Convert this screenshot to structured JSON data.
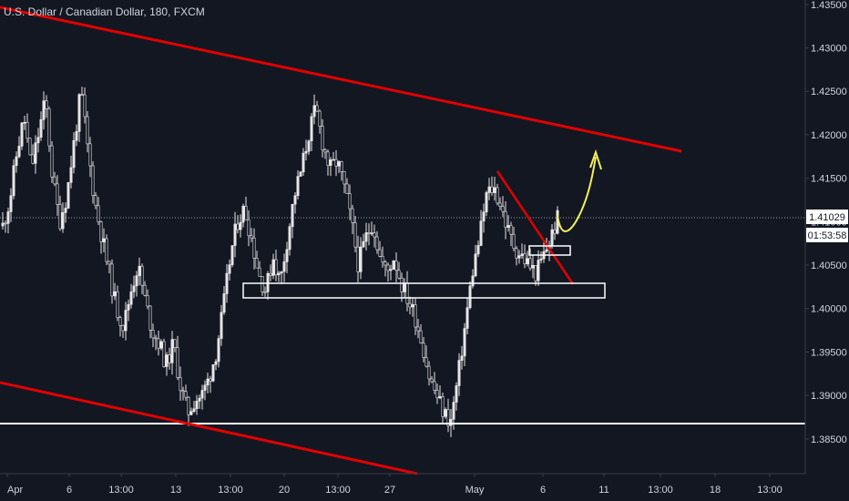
{
  "header": {
    "title": "U.S. Dollar / Canadian Dollar, 180, FXCM"
  },
  "colors": {
    "background": "#131722",
    "candle": "#e6e6e6",
    "trendline": "#e10000",
    "arrow": "#f2ef5a",
    "support_line": "#ffffff",
    "axis_text": "#d1d4dc"
  },
  "chart_data": {
    "type": "candlestick",
    "symbol": "USDCAD",
    "ylim": [
      1.381,
      1.4355
    ],
    "y_ticks": [
      "1.43500",
      "1.43000",
      "1.42500",
      "1.42000",
      "1.41500",
      "1.41000",
      "1.40500",
      "1.40000",
      "1.39500",
      "1.39000",
      "1.38500"
    ],
    "x_tick_labels": [
      "Apr",
      "6",
      "13:00",
      "13",
      "13:00",
      "20",
      "13:00",
      "27",
      "May",
      "6",
      "11",
      "13:00",
      "18",
      "13:00"
    ],
    "current_price": "1.41029",
    "countdown": "01:53:58",
    "price_path": [
      1.4095,
      1.4125,
      1.418,
      1.422,
      1.416,
      1.42,
      1.424,
      1.415,
      1.41,
      1.413,
      1.419,
      1.425,
      1.418,
      1.412,
      1.408,
      1.404,
      1.4,
      1.398,
      1.402,
      1.405,
      1.401,
      1.3975,
      1.396,
      1.3935,
      1.396,
      1.391,
      1.388,
      1.3895,
      1.39,
      1.392,
      1.395,
      1.4,
      1.406,
      1.41,
      1.4115,
      1.408,
      1.404,
      1.402,
      1.406,
      1.403,
      1.408,
      1.413,
      1.416,
      1.42,
      1.423,
      1.419,
      1.416,
      1.417,
      1.414,
      1.41,
      1.405,
      1.408,
      1.41,
      1.406,
      1.404,
      1.406,
      1.403,
      1.401,
      1.399,
      1.396,
      1.392,
      1.39,
      1.388,
      1.387,
      1.392,
      1.398,
      1.404,
      1.408,
      1.413,
      1.414,
      1.412,
      1.409,
      1.407,
      1.406,
      1.405,
      1.404,
      1.406,
      1.408,
      1.4103
    ],
    "annotations": [
      {
        "type": "channel-upper-trendline",
        "from": [
          "Apr",
          1.435
        ],
        "to": [
          "13:00 after 11",
          1.4175
        ]
      },
      {
        "type": "channel-lower-trendline",
        "from": [
          "Apr",
          1.391
        ],
        "to": [
          "27",
          1.381
        ]
      },
      {
        "type": "descending-trendline",
        "from": [
          "May",
          1.4155
        ],
        "to": [
          "6",
          1.4025
        ]
      },
      {
        "type": "horizontal-support",
        "price": 1.3865
      },
      {
        "type": "support-zone-box",
        "from": [
          "13",
          1.403
        ],
        "to": [
          "6",
          1.401
        ]
      },
      {
        "type": "small-zone-box",
        "price_top": 1.4065,
        "price_bottom": 1.4055
      },
      {
        "type": "projected-path-arrow",
        "from": [
          "6",
          1.4095
        ],
        "to": [
          "11",
          1.4185
        ]
      }
    ]
  }
}
